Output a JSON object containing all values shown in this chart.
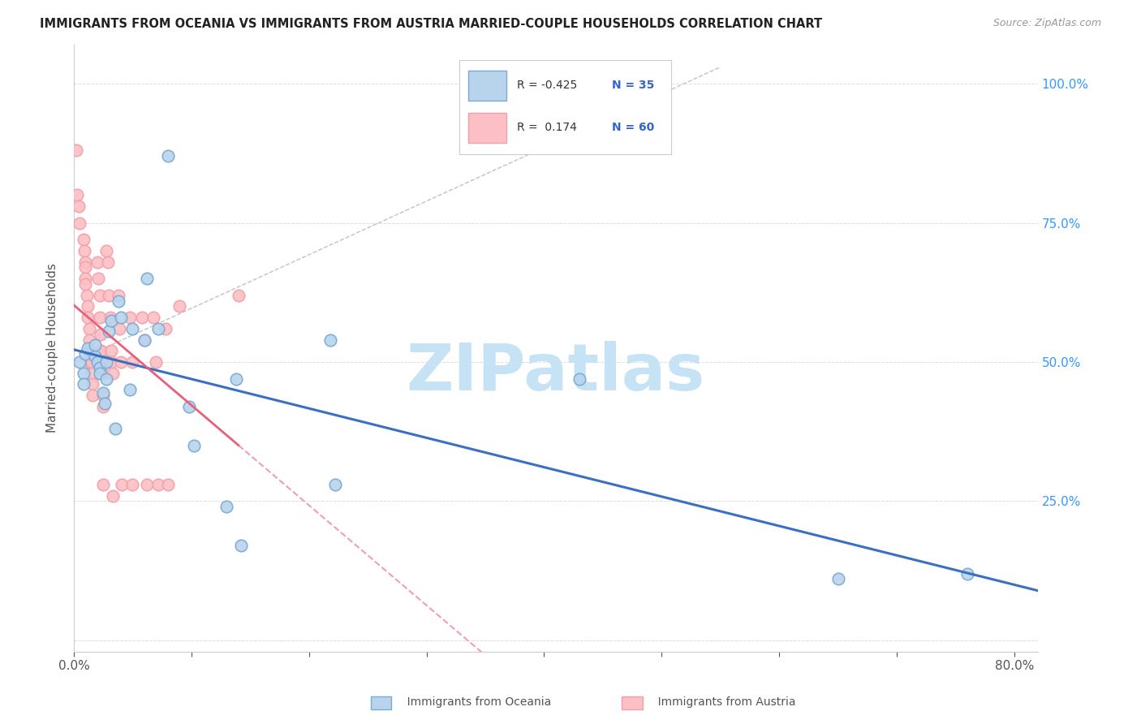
{
  "title": "IMMIGRANTS FROM OCEANIA VS IMMIGRANTS FROM AUSTRIA MARRIED-COUPLE HOUSEHOLDS CORRELATION CHART",
  "source": "Source: ZipAtlas.com",
  "ylabel": "Married-couple Households",
  "xlim": [
    0.0,
    0.82
  ],
  "ylim": [
    -0.02,
    1.07
  ],
  "legend_oceania_R": "-0.425",
  "legend_oceania_N": "35",
  "legend_austria_R": "0.174",
  "legend_austria_N": "60",
  "oceania_color": "#7AAAD4",
  "austria_color": "#F4A0A8",
  "oceania_fill": "#B8D4ED",
  "austria_fill": "#FBBFC5",
  "trend_oceania_color": "#3B6FBF",
  "trend_austria_color": "#E8607A",
  "watermark": "ZIPatlas",
  "watermark_color": "#C5E3F5",
  "oceania_x": [
    0.005,
    0.008,
    0.01,
    0.012,
    0.008,
    0.018,
    0.02,
    0.022,
    0.018,
    0.025,
    0.022,
    0.028,
    0.03,
    0.032,
    0.028,
    0.026,
    0.038,
    0.04,
    0.035,
    0.05,
    0.048,
    0.062,
    0.06,
    0.072,
    0.08,
    0.098,
    0.102,
    0.13,
    0.138,
    0.142,
    0.218,
    0.222,
    0.43,
    0.65,
    0.76
  ],
  "oceania_y": [
    0.5,
    0.48,
    0.515,
    0.525,
    0.46,
    0.51,
    0.5,
    0.49,
    0.53,
    0.445,
    0.48,
    0.5,
    0.555,
    0.575,
    0.47,
    0.425,
    0.61,
    0.58,
    0.38,
    0.56,
    0.45,
    0.65,
    0.54,
    0.56,
    0.87,
    0.42,
    0.35,
    0.24,
    0.47,
    0.17,
    0.54,
    0.28,
    0.47,
    0.11,
    0.12
  ],
  "austria_x": [
    0.002,
    0.003,
    0.004,
    0.005,
    0.008,
    0.009,
    0.01,
    0.01,
    0.01,
    0.01,
    0.011,
    0.012,
    0.012,
    0.013,
    0.013,
    0.013,
    0.014,
    0.014,
    0.014,
    0.015,
    0.015,
    0.016,
    0.016,
    0.02,
    0.021,
    0.022,
    0.022,
    0.023,
    0.023,
    0.023,
    0.024,
    0.024,
    0.025,
    0.025,
    0.025,
    0.028,
    0.029,
    0.03,
    0.031,
    0.032,
    0.032,
    0.033,
    0.033,
    0.038,
    0.039,
    0.04,
    0.041,
    0.048,
    0.05,
    0.05,
    0.058,
    0.06,
    0.062,
    0.068,
    0.07,
    0.072,
    0.078,
    0.08,
    0.09,
    0.14
  ],
  "austria_y": [
    0.88,
    0.8,
    0.78,
    0.75,
    0.72,
    0.7,
    0.68,
    0.67,
    0.65,
    0.64,
    0.62,
    0.6,
    0.58,
    0.56,
    0.54,
    0.52,
    0.5,
    0.5,
    0.5,
    0.5,
    0.48,
    0.46,
    0.44,
    0.68,
    0.65,
    0.62,
    0.58,
    0.55,
    0.52,
    0.52,
    0.5,
    0.48,
    0.44,
    0.42,
    0.28,
    0.7,
    0.68,
    0.62,
    0.58,
    0.52,
    0.5,
    0.48,
    0.26,
    0.62,
    0.56,
    0.5,
    0.28,
    0.58,
    0.5,
    0.28,
    0.58,
    0.54,
    0.28,
    0.58,
    0.5,
    0.28,
    0.56,
    0.28,
    0.6,
    0.62
  ]
}
